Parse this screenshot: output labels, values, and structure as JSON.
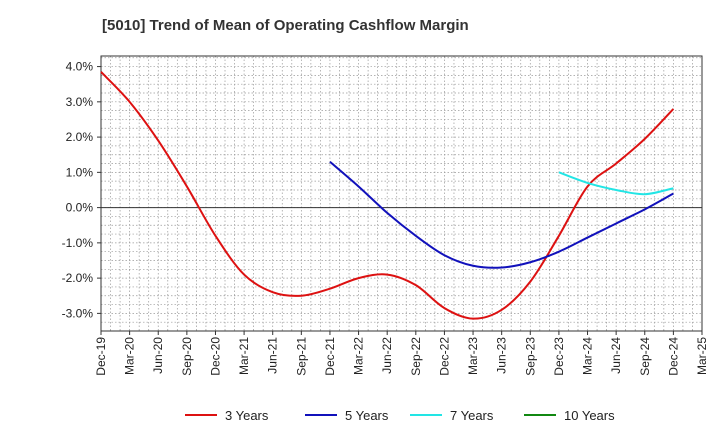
{
  "chart_data": {
    "type": "line",
    "title": "[5010]  Trend of Mean of Operating Cashflow Margin",
    "xlabel": "",
    "ylabel": "",
    "x_ticks": [
      "Dec-19",
      "Mar-20",
      "Jun-20",
      "Sep-20",
      "Dec-20",
      "Mar-21",
      "Jun-21",
      "Sep-21",
      "Dec-21",
      "Mar-22",
      "Jun-22",
      "Sep-22",
      "Dec-22",
      "Mar-23",
      "Jun-23",
      "Sep-23",
      "Dec-23",
      "Mar-24",
      "Jun-24",
      "Sep-24",
      "Dec-24",
      "Mar-25"
    ],
    "y_ticks": [
      4.0,
      3.0,
      2.0,
      1.0,
      0.0,
      -1.0,
      -2.0,
      -3.0
    ],
    "y_tick_labels": [
      "4.0%",
      "3.0%",
      "2.0%",
      "1.0%",
      "0.0%",
      "-1.0%",
      "-2.0%",
      "-3.0%"
    ],
    "ylim": [
      -3.5,
      4.3
    ],
    "grid": true,
    "legend_position": "bottom",
    "series": [
      {
        "name": "3 Years",
        "color": "#dd1111",
        "x": [
          "Dec-19",
          "Mar-20",
          "Jun-20",
          "Sep-20",
          "Dec-20",
          "Mar-21",
          "Jun-21",
          "Sep-21",
          "Dec-21",
          "Mar-22",
          "Jun-22",
          "Sep-22",
          "Dec-22",
          "Mar-23",
          "Jun-23",
          "Sep-23",
          "Dec-23",
          "Mar-24",
          "Jun-24",
          "Sep-24",
          "Dec-24"
        ],
        "values": [
          3.85,
          3.0,
          1.9,
          0.6,
          -0.8,
          -1.9,
          -2.4,
          -2.5,
          -2.3,
          -2.0,
          -1.9,
          -2.2,
          -2.85,
          -3.15,
          -2.9,
          -2.1,
          -0.8,
          0.6,
          1.25,
          1.95,
          2.8
        ]
      },
      {
        "name": "5 Years",
        "color": "#1111bb",
        "x": [
          "Dec-21",
          "Mar-22",
          "Jun-22",
          "Sep-22",
          "Dec-22",
          "Mar-23",
          "Jun-23",
          "Sep-23",
          "Dec-23",
          "Mar-24",
          "Jun-24",
          "Sep-24",
          "Dec-24"
        ],
        "values": [
          1.3,
          0.6,
          -0.15,
          -0.8,
          -1.35,
          -1.65,
          -1.7,
          -1.55,
          -1.25,
          -0.85,
          -0.45,
          -0.05,
          0.4
        ]
      },
      {
        "name": "7 Years",
        "color": "#22e5e5",
        "x": [
          "Dec-23",
          "Mar-24",
          "Jun-24",
          "Sep-24",
          "Dec-24"
        ],
        "values": [
          1.0,
          0.7,
          0.5,
          0.38,
          0.55
        ]
      },
      {
        "name": "10 Years",
        "color": "#118811",
        "x": [],
        "values": []
      }
    ]
  }
}
